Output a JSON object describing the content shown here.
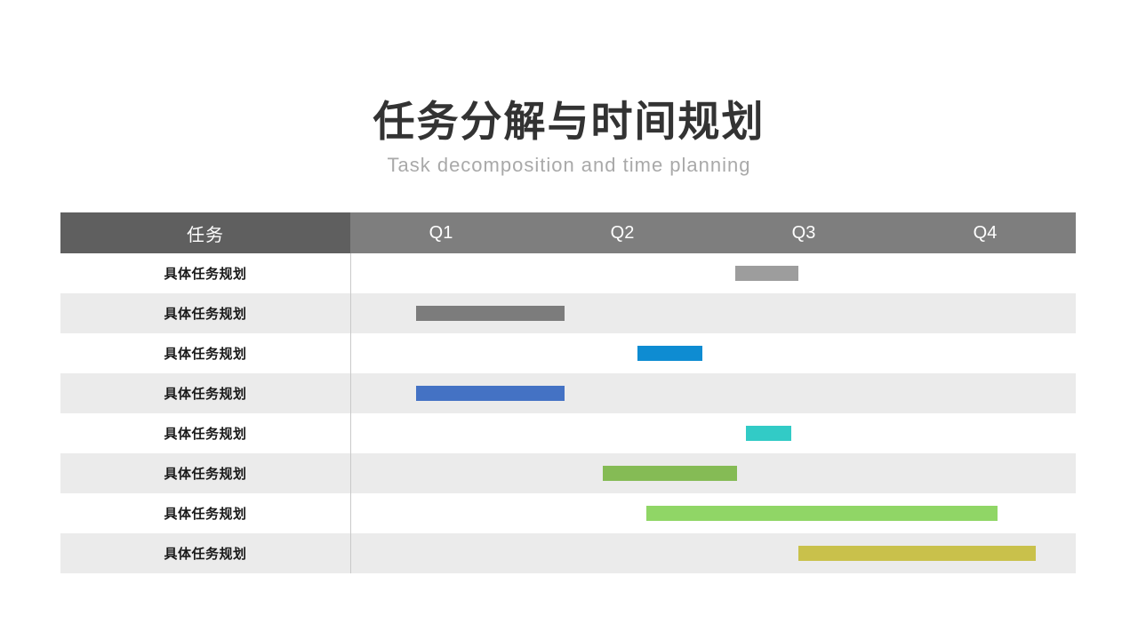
{
  "page": {
    "background": "#ffffff"
  },
  "header": {
    "title": "任务分解与时间规划",
    "subtitle": "Task decomposition and time planning",
    "title_color": "#333333",
    "subtitle_color": "#a9a9a9"
  },
  "gantt": {
    "task_column_header": "任务",
    "quarters": [
      "Q1",
      "Q2",
      "Q3",
      "Q4"
    ],
    "row_label": "具体任务规划",
    "colors": {
      "task_header_bg": "#5f5f5f",
      "quarter_header_bg": "#7e7e7e",
      "header_text": "#ffffff",
      "row_bg": "#ffffff",
      "row_alt_bg": "#ebebeb",
      "divider": "#c9c9c9",
      "label_text": "#1a1a1a"
    }
  },
  "chart_data": {
    "type": "gantt",
    "title": "任务分解与时间规划",
    "subtitle": "Task decomposition and time planning",
    "x_axis": {
      "categories": [
        "Q1",
        "Q2",
        "Q3",
        "Q4"
      ],
      "unit": "quarter",
      "range": [
        0,
        4
      ]
    },
    "legend": "none",
    "grid": "off",
    "tasks": [
      {
        "name": "具体任务规划",
        "start_quarter": 2.12,
        "end_quarter": 2.47,
        "color": "#9d9d9d"
      },
      {
        "name": "具体任务规划",
        "start_quarter": 0.36,
        "end_quarter": 1.18,
        "color": "#7c7c7c"
      },
      {
        "name": "具体任务规划",
        "start_quarter": 1.58,
        "end_quarter": 1.94,
        "color": "#0e8cd2"
      },
      {
        "name": "具体任务规划",
        "start_quarter": 0.36,
        "end_quarter": 1.18,
        "color": "#4472c4"
      },
      {
        "name": "具体任务规划",
        "start_quarter": 2.18,
        "end_quarter": 2.43,
        "color": "#32cbc6"
      },
      {
        "name": "具体任务规划",
        "start_quarter": 1.39,
        "end_quarter": 2.13,
        "color": "#85bb55"
      },
      {
        "name": "具体任务规划",
        "start_quarter": 1.63,
        "end_quarter": 3.57,
        "color": "#90d666"
      },
      {
        "name": "具体任务规划",
        "start_quarter": 2.47,
        "end_quarter": 3.78,
        "color": "#c9c14b"
      }
    ]
  }
}
